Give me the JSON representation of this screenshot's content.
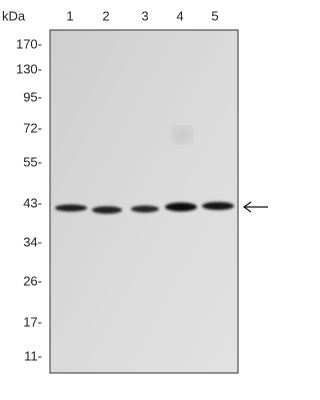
{
  "unit_label": "kDa",
  "lanes": [
    "1",
    "2",
    "3",
    "4",
    "5"
  ],
  "ladder": [
    "170-",
    "130-",
    "95-",
    "72-",
    "55-",
    "43-",
    "34-",
    "26-",
    "17-",
    "11-"
  ]
}
